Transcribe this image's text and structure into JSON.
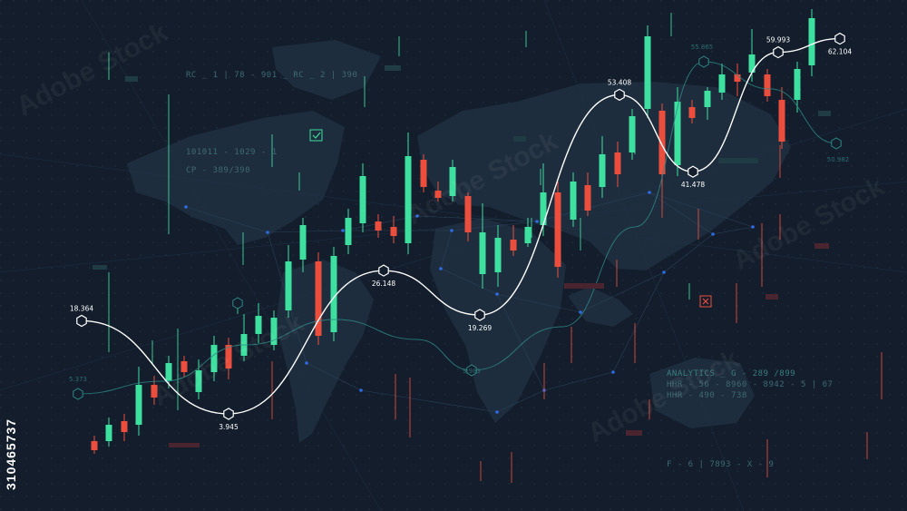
{
  "hud_texts": {
    "rc_code": "RC _ 1 | 78 - 901 _ RC _ 2 | 390",
    "binary_code": "101011 - 1029 - 1",
    "cp_code": "CP - 389/390",
    "analytics_1": "ANALYTICS _ G - 289 /899",
    "analytics_2": "HHR - 56 - 8960 - 8942 - 5 | 67",
    "analytics_3": "HHR - 490 - 738",
    "footer_code": "F - 6 | 7893 - X - 9"
  },
  "watermark": {
    "side_id": "310465737",
    "stock_brand": "Adobe Stock"
  },
  "colors": {
    "background": "#131d2b",
    "map": "#1e2d3e",
    "up": "#3ee0a0",
    "down": "#ec4e3e",
    "line": "#ffffff",
    "secondary_line": "#2d8a86",
    "node": "#2f6ae0"
  },
  "chart_data": {
    "type": "line",
    "title": "",
    "xlabel": "",
    "ylabel": "",
    "series": [
      {
        "points": [
          {
            "label": "18.364",
            "value": 18.364
          },
          {
            "label": "3.945",
            "value": 3.945
          },
          {
            "label": "26.148",
            "value": 26.148
          },
          {
            "label": "19.269",
            "value": 19.269
          },
          {
            "label": "53.408",
            "value": 53.408
          },
          {
            "label": "41.478",
            "value": 41.478
          },
          {
            "label": "59.993",
            "value": 59.993
          },
          {
            "label": "62.104",
            "value": 62.104
          }
        ]
      }
    ],
    "secondary_labels": [
      "5.373",
      "9.983",
      "55.865",
      "50.982"
    ]
  }
}
